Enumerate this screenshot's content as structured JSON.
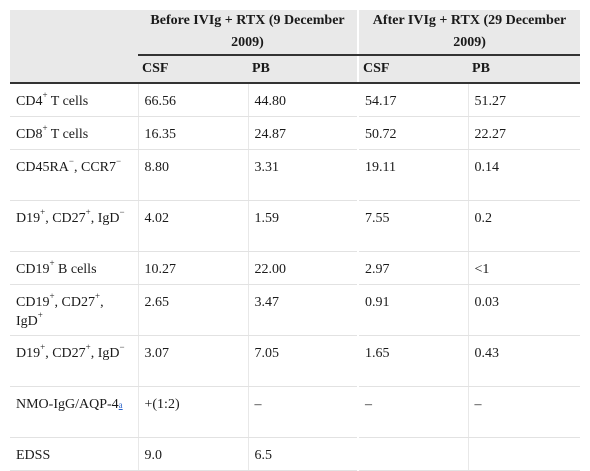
{
  "header": {
    "group_before": "Before IVIg + RTX (9 December 2009)",
    "group_after": "After IVIg + RTX (29 December 2009)",
    "sub": [
      "CSF",
      "PB",
      "CSF",
      "PB"
    ]
  },
  "rows": [
    {
      "label": "CD4",
      "sup": "+",
      "rest": " T cells",
      "values": [
        "66.56",
        "44.80",
        "54.17",
        "51.27"
      ]
    },
    {
      "label": "CD8",
      "sup": "+",
      "rest": " T cells",
      "values": [
        "16.35",
        "24.87",
        "50.72",
        "22.27"
      ]
    },
    {
      "label_html": "CD45RA<sup>−</sup>, CCR7<sup>−</sup>",
      "values": [
        "8.80",
        "3.31",
        "19.11",
        "0.14"
      ]
    },
    {
      "label_html": "D19<sup>+</sup>, CD27<sup>+</sup>, IgD<sup>−</sup>",
      "values": [
        "4.02",
        "1.59",
        "7.55",
        "0.2"
      ]
    },
    {
      "label_html": "CD19<sup>+</sup> B cells",
      "values": [
        "10.27",
        "22.00",
        "2.97",
        "<1"
      ]
    },
    {
      "label_html": "CD19<sup>+</sup>, CD27<sup>+</sup>, IgD<sup>+</sup>",
      "values": [
        "2.65",
        "3.47",
        "0.91",
        "0.03"
      ]
    },
    {
      "label_html": "D19<sup>+</sup>, CD27<sup>+</sup>, IgD<sup>−</sup>",
      "values": [
        "3.07",
        "7.05",
        "1.65",
        "0.43"
      ]
    },
    {
      "label_html": "NMO-IgG/AQP-4<a class=\"fn\">a</a>",
      "values": [
        "+(1:2)",
        "–",
        "–",
        "–"
      ]
    },
    {
      "label_html": "EDSS",
      "values": [
        "9.0",
        "6.5",
        "",
        ""
      ]
    }
  ]
}
